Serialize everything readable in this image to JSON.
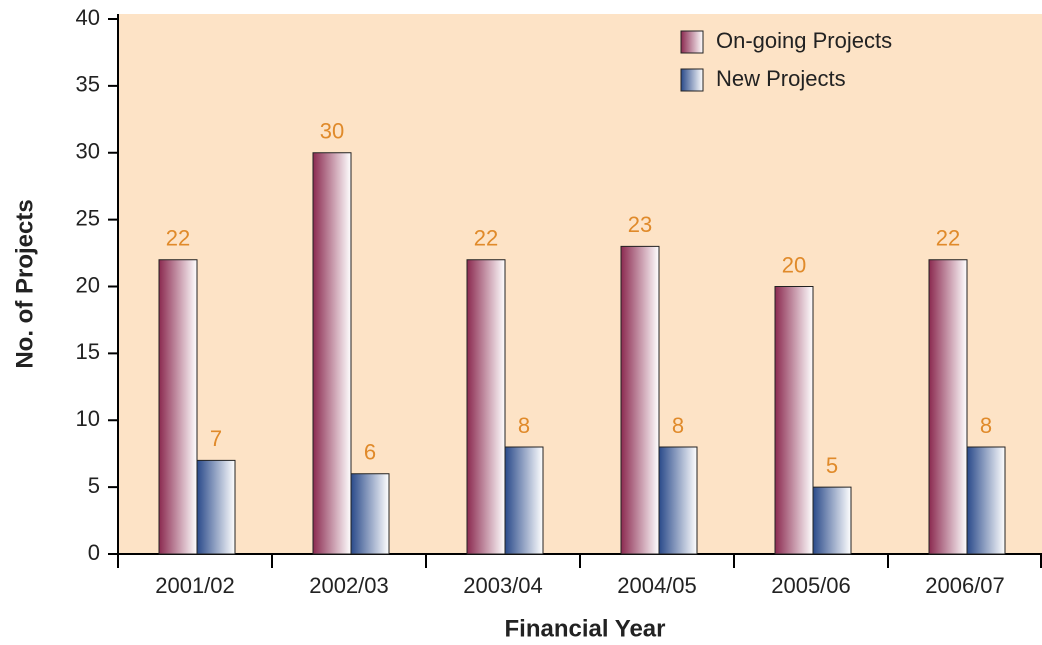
{
  "chart_data": {
    "type": "bar",
    "xlabel": "Financial Year",
    "ylabel": "No. of Projects",
    "categories": [
      "2001/02",
      "2002/03",
      "2003/04",
      "2004/05",
      "2005/06",
      "2006/07"
    ],
    "series": [
      {
        "name": "On-going Projects",
        "color": "#8b2a50",
        "values": [
          22,
          30,
          22,
          23,
          20,
          22
        ]
      },
      {
        "name": "New Projects",
        "color": "#2a4a8a",
        "values": [
          7,
          6,
          8,
          8,
          5,
          8
        ]
      }
    ],
    "ylim": [
      0,
      40
    ],
    "yticks": [
      0,
      5,
      10,
      15,
      20,
      25,
      30,
      35,
      40
    ],
    "legend": "upper right",
    "background": "#fde3c6"
  }
}
